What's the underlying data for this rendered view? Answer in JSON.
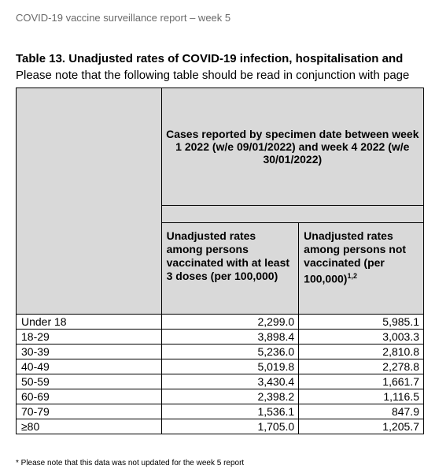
{
  "page_header": "COVID-19 vaccine surveillance report – week 5",
  "table_title": "Table 13. Unadjusted rates of COVID-19 infection, hospitalisation and",
  "table_note": "Please note that the following table should be read in conjunction with page",
  "table": {
    "group_header": "Cases reported by specimen date between week 1 2022 (w/e 09/01/2022) and week 4 2022 (w/e 30/01/2022)",
    "col_vaccinated": "Unadjusted rates among persons vaccinated with at least 3 doses (per 100,000)",
    "col_unvaccinated": "Unadjusted rates among persons not vaccinated (per 100,000)",
    "col_unvaccinated_sup": "1,2",
    "rows": [
      {
        "age": "Under 18",
        "vaccinated": "2,299.0",
        "unvaccinated": "5,985.1"
      },
      {
        "age": "18-29",
        "vaccinated": "3,898.4",
        "unvaccinated": "3,003.3"
      },
      {
        "age": "30-39",
        "vaccinated": "5,236.0",
        "unvaccinated": "2,810.8"
      },
      {
        "age": "40-49",
        "vaccinated": "5,019.8",
        "unvaccinated": "2,278.8"
      },
      {
        "age": "50-59",
        "vaccinated": "3,430.4",
        "unvaccinated": "1,661.7"
      },
      {
        "age": "60-69",
        "vaccinated": "2,398.2",
        "unvaccinated": "1,116.5"
      },
      {
        "age": "70-79",
        "vaccinated": "1,536.1",
        "unvaccinated": "847.9"
      },
      {
        "age": "≥80",
        "vaccinated": "1,705.0",
        "unvaccinated": "1,205.7"
      }
    ]
  },
  "footnote": "* Please note that this data was not updated for the week 5 report"
}
